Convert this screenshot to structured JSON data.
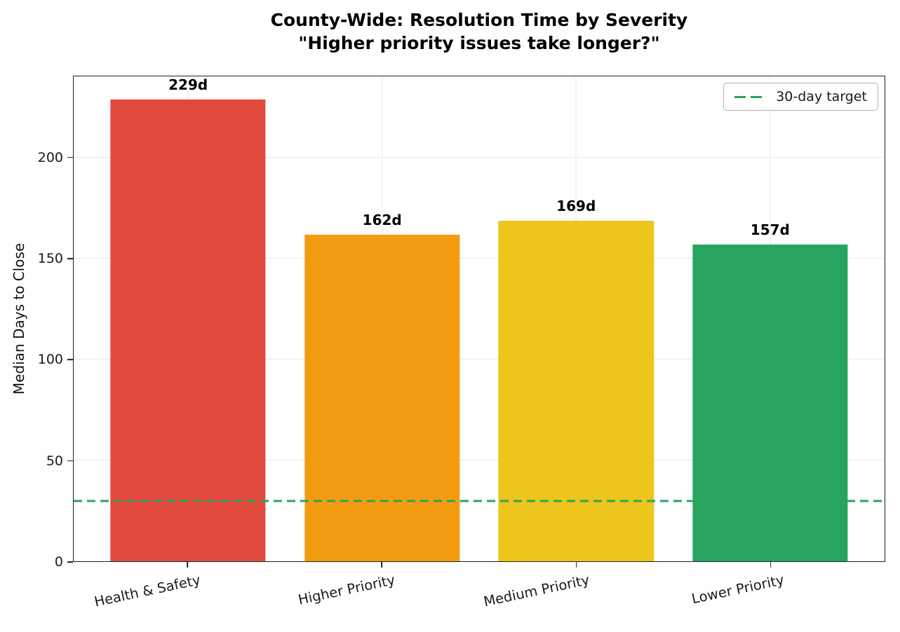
{
  "chart_data": {
    "type": "bar",
    "title": "County-Wide: Resolution Time by Severity",
    "subtitle": "\"Higher priority issues take longer?\"",
    "categories": [
      "Health & Safety",
      "Higher Priority",
      "Medium Priority",
      "Lower Priority"
    ],
    "values": [
      229,
      162,
      169,
      157
    ],
    "bar_labels": [
      "229d",
      "162d",
      "169d",
      "157d"
    ],
    "bar_colors": [
      "#e2493d",
      "#f39c12",
      "#eec51c",
      "#27a45e"
    ],
    "xlabel": "",
    "ylabel": "Median Days to Close",
    "ylim": [
      0,
      240.45
    ],
    "yticks": [
      0,
      50,
      100,
      150,
      200
    ],
    "grid": true,
    "legend_position": "upper right",
    "reference_line": {
      "value": 30,
      "label": "30-day target",
      "color": "#27a45e",
      "style": "dashed"
    }
  }
}
